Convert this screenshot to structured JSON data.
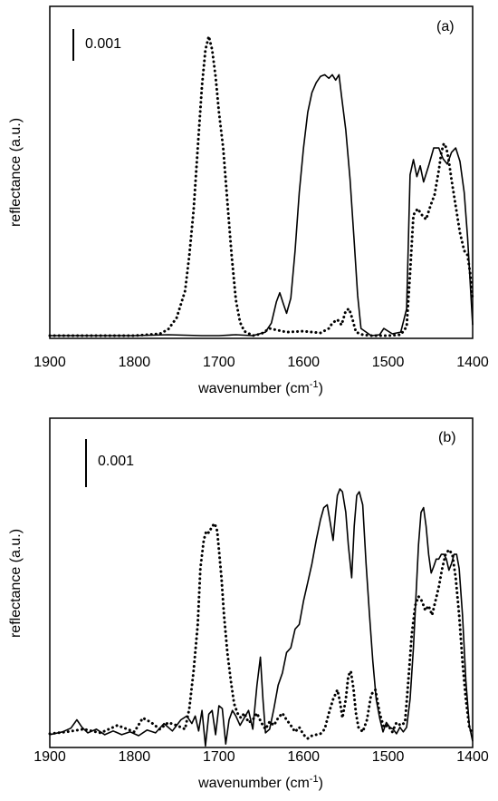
{
  "chart_data": [
    {
      "type": "line",
      "panel_label": "(a)",
      "xlabel": "wavenumber (cm",
      "xlabel_sup": "-1",
      "xlabel_close": ")",
      "ylabel": "reflectance (a.u.)",
      "xlim": [
        1900,
        1400
      ],
      "ylim": [
        0,
        0.00335
      ],
      "x_ticks": [
        "1900",
        "1800",
        "1700",
        "1600",
        "1500",
        "1400"
      ],
      "x_tick_values": [
        1900,
        1800,
        1700,
        1600,
        1500,
        1400
      ],
      "scale_bar": {
        "label": "0.001",
        "value": 0.001
      },
      "grid": false,
      "series": [
        {
          "style": "solid",
          "x": [
            1900,
            1850,
            1800,
            1760,
            1720,
            1700,
            1680,
            1660,
            1645,
            1638,
            1632,
            1628,
            1624,
            1620,
            1615,
            1610,
            1605,
            1600,
            1595,
            1590,
            1585,
            1580,
            1575,
            1570,
            1566,
            1562,
            1558,
            1555,
            1550,
            1545,
            1540,
            1536,
            1532,
            1520,
            1510,
            1505,
            1495,
            1485,
            1478,
            1474,
            1470,
            1466,
            1462,
            1458,
            1452,
            1446,
            1440,
            1435,
            1430,
            1425,
            1420,
            1415,
            1410,
            1406,
            1402,
            1400
          ],
          "y": [
            0,
            0,
            0,
            1e-05,
            0,
            0,
            1e-05,
            0,
            4e-05,
            0.00014,
            0.00038,
            0.00048,
            0.00036,
            0.00025,
            0.00042,
            0.00095,
            0.0016,
            0.0021,
            0.0025,
            0.00272,
            0.00283,
            0.0029,
            0.00292,
            0.00288,
            0.00292,
            0.00286,
            0.00292,
            0.00268,
            0.0023,
            0.00175,
            0.00105,
            0.00045,
            8e-05,
            0,
            1e-05,
            8e-05,
            2e-05,
            4e-05,
            0.0003,
            0.0018,
            0.00197,
            0.00178,
            0.0019,
            0.00172,
            0.0019,
            0.0021,
            0.0021,
            0.00198,
            0.00192,
            0.00205,
            0.0021,
            0.00195,
            0.0016,
            0.0011,
            0.00045,
            0.00012
          ]
        },
        {
          "style": "dotted",
          "x": [
            1900,
            1850,
            1800,
            1770,
            1760,
            1750,
            1740,
            1735,
            1730,
            1725,
            1720,
            1716,
            1712,
            1708,
            1704,
            1700,
            1695,
            1690,
            1685,
            1680,
            1675,
            1670,
            1660,
            1650,
            1640,
            1620,
            1600,
            1580,
            1570,
            1566,
            1560,
            1555,
            1550,
            1546,
            1542,
            1538,
            1530,
            1520,
            1500,
            1485,
            1478,
            1474,
            1470,
            1465,
            1460,
            1455,
            1450,
            1445,
            1440,
            1437,
            1434,
            1431,
            1428,
            1425,
            1420,
            1415,
            1410,
            1406,
            1403,
            1400
          ],
          "y": [
            0,
            0,
            0,
            2e-05,
            7e-05,
            0.0002,
            0.0005,
            0.0009,
            0.0014,
            0.0021,
            0.0028,
            0.0032,
            0.00335,
            0.0032,
            0.0029,
            0.0025,
            0.0021,
            0.0015,
            0.0009,
            0.0004,
            0.00015,
            5e-05,
            0,
            2e-05,
            8e-05,
            4e-05,
            5e-05,
            3e-05,
            8e-05,
            0.00014,
            0.00018,
            0.00012,
            0.00028,
            0.0003,
            0.00018,
            4e-05,
            1e-05,
            0,
            0,
            1e-05,
            0.0001,
            0.0007,
            0.00135,
            0.00142,
            0.00135,
            0.0013,
            0.00145,
            0.00158,
            0.00185,
            0.00205,
            0.00215,
            0.0021,
            0.00195,
            0.00175,
            0.00145,
            0.00115,
            0.00095,
            0.0009,
            0.0007,
            0.0004
          ]
        }
      ]
    },
    {
      "type": "line",
      "panel_label": "(b)",
      "xlabel": "wavenumber (cm",
      "xlabel_sup": "-1",
      "xlabel_close": ")",
      "ylabel": "reflectance (a.u.)",
      "xlim": [
        1900,
        1400
      ],
      "ylim": [
        0,
        0.00298
      ],
      "x_ticks": [
        "1900",
        "1800",
        "1700",
        "1600",
        "1500",
        "1400"
      ],
      "x_tick_values": [
        1900,
        1800,
        1700,
        1600,
        1500,
        1400
      ],
      "scale_bar": {
        "label": "0.001",
        "value": 0.001
      },
      "grid": false,
      "series": [
        {
          "style": "solid",
          "x": [
            1900,
            1885,
            1875,
            1868,
            1862,
            1855,
            1845,
            1835,
            1825,
            1815,
            1805,
            1795,
            1785,
            1775,
            1765,
            1755,
            1745,
            1738,
            1732,
            1728,
            1724,
            1720,
            1716,
            1712,
            1708,
            1704,
            1700,
            1696,
            1692,
            1688,
            1684,
            1680,
            1675,
            1670,
            1665,
            1660,
            1655,
            1651,
            1648,
            1645,
            1640,
            1635,
            1630,
            1625,
            1620,
            1615,
            1610,
            1605,
            1600,
            1595,
            1590,
            1585,
            1580,
            1576,
            1572,
            1569,
            1565,
            1562,
            1560,
            1557,
            1554,
            1550,
            1547,
            1543,
            1540,
            1537,
            1534,
            1530,
            1526,
            1522,
            1518,
            1514,
            1510,
            1506,
            1502,
            1498,
            1494,
            1490,
            1486,
            1482,
            1478,
            1474,
            1470,
            1467,
            1464,
            1461,
            1458,
            1455,
            1452,
            1449,
            1446,
            1443,
            1440,
            1437,
            1434,
            1431,
            1428,
            1425,
            1422,
            1419,
            1416,
            1412,
            1408,
            1404,
            1400
          ],
          "y": [
            2e-05,
            5e-05,
            9e-05,
            0.00018,
            0.0001,
            4e-05,
            8e-05,
            2e-05,
            6e-05,
            2e-05,
            5e-05,
            1e-05,
            7e-05,
            4e-05,
            0.00014,
            6e-05,
            0.00018,
            0.00022,
            0.00014,
            0.00022,
            6e-05,
            0.00028,
            -0.0001,
            0.00024,
            0.00028,
            2e-05,
            0.00033,
            0.0003,
            -8e-05,
            0.00018,
            0.00028,
            0.00022,
            0.00012,
            0.0002,
            0.00028,
            8e-05,
            0.00055,
            0.00085,
            0.0004,
            4e-05,
            8e-05,
            0.0003,
            0.00055,
            0.00068,
            0.0009,
            0.00095,
            0.00115,
            0.0012,
            0.00145,
            0.00165,
            0.00185,
            0.0021,
            0.00232,
            0.00245,
            0.00248,
            0.00232,
            0.0021,
            0.0024,
            0.00258,
            0.00265,
            0.00262,
            0.0024,
            0.00205,
            0.0017,
            0.00225,
            0.00258,
            0.00262,
            0.00248,
            0.00185,
            0.0013,
            0.0008,
            0.0004,
            0.0002,
            5e-05,
            0.00015,
            0.0001,
            8e-05,
            3e-05,
            0.0001,
            5e-05,
            0.0001,
            0.0004,
            0.00095,
            0.0015,
            0.00205,
            0.0024,
            0.00245,
            0.00225,
            0.00195,
            0.00175,
            0.00182,
            0.0019,
            0.0019,
            0.00195,
            0.00195,
            0.0019,
            0.00178,
            0.00185,
            0.00195,
            0.00195,
            0.0018,
            0.0013,
            0.0006,
            0.00012,
            -5e-05
          ]
        },
        {
          "style": "dotted",
          "x": [
            1900,
            1880,
            1860,
            1840,
            1820,
            1800,
            1790,
            1780,
            1770,
            1760,
            1750,
            1740,
            1735,
            1730,
            1725,
            1722,
            1718,
            1715,
            1712,
            1708,
            1705,
            1702,
            1700,
            1697,
            1694,
            1690,
            1686,
            1682,
            1678,
            1674,
            1670,
            1665,
            1660,
            1655,
            1650,
            1645,
            1640,
            1635,
            1630,
            1625,
            1620,
            1615,
            1610,
            1605,
            1600,
            1595,
            1590,
            1585,
            1580,
            1575,
            1570,
            1565,
            1560,
            1557,
            1554,
            1550,
            1547,
            1544,
            1541,
            1538,
            1535,
            1530,
            1525,
            1520,
            1515,
            1510,
            1505,
            1500,
            1495,
            1490,
            1485,
            1480,
            1476,
            1472,
            1468,
            1464,
            1460,
            1456,
            1452,
            1448,
            1444,
            1440,
            1436,
            1432,
            1428,
            1424,
            1420,
            1416,
            1412,
            1408,
            1404,
            1400
          ],
          "y": [
            3e-05,
            5e-05,
            8e-05,
            4e-05,
            0.00012,
            5e-05,
            0.0002,
            0.00015,
            8e-05,
            0.00015,
            0.00012,
            8e-05,
            0.0003,
            0.0007,
            0.0012,
            0.0018,
            0.0021,
            0.0022,
            0.00218,
            0.00225,
            0.00228,
            0.0022,
            0.002,
            0.0017,
            0.0013,
            0.0009,
            0.0006,
            0.00035,
            0.00025,
            0.0002,
            0.00025,
            0.00015,
            0.00018,
            0.00025,
            0.00015,
            8e-05,
            0.00016,
            0.00012,
            0.0002,
            0.00025,
            0.00018,
            0.00012,
            5e-05,
            0.0001,
            2e-05,
            -2e-05,
            1e-05,
            2e-05,
            3e-05,
            8e-05,
            0.00025,
            0.0004,
            0.0005,
            0.00038,
            0.0002,
            0.0004,
            0.00065,
            0.0007,
            0.00052,
            0.00025,
            0.0001,
            5e-05,
            0.00018,
            0.00045,
            0.0005,
            0.00025,
            0.0001,
            0.00012,
            5e-05,
            0.00015,
            0.00012,
            0.00015,
            0.0006,
            0.0011,
            0.0014,
            0.0015,
            0.00145,
            0.00135,
            0.0014,
            0.0013,
            0.00145,
            0.0016,
            0.0018,
            0.00195,
            0.002,
            0.00195,
            0.0017,
            0.0013,
            0.0008,
            0.0004,
            0.0001,
            2e-05
          ]
        }
      ]
    }
  ]
}
